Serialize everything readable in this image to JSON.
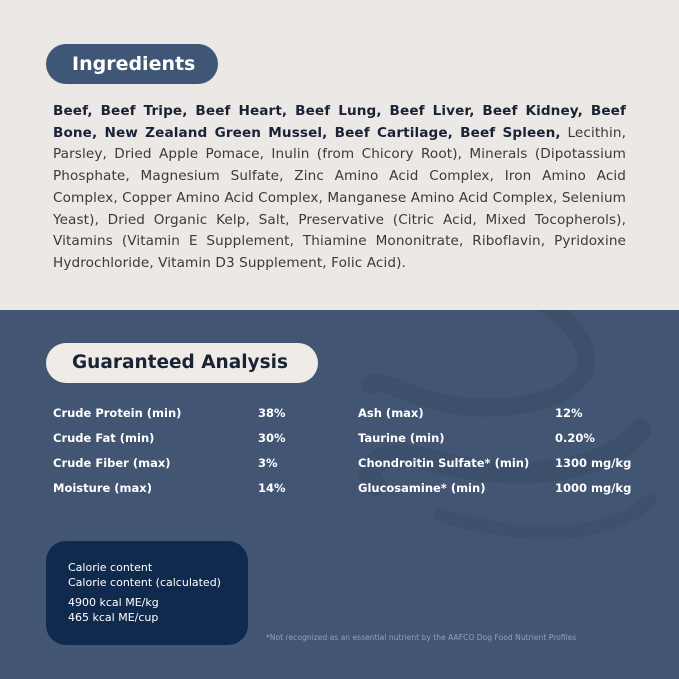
{
  "ingredients": {
    "title": "Ingredients",
    "bold_text": "Beef, Beef Tripe, Beef Heart, Beef Lung, Beef Liver, Beef Kidney, Beef Bone, New Zealand Green Mussel, Beef Cartilage, Beef Spleen,",
    "regular_text": " Lecithin, Parsley, Dried Apple Pomace, Inulin (from Chicory Root), Minerals (Dipotassium Phosphate, Magnesium Sulfate, Zinc Amino Acid Complex, Iron Amino Acid Complex, Copper Amino Acid Complex, Manganese Amino Acid Complex, Selenium Yeast), Dried Organic Kelp, Salt, Preservative (Citric Acid, Mixed Tocopherols), Vitamins (Vitamin E Supplement, Thiamine Mononitrate, Riboflavin, Pyridoxine Hydrochloride, Vitamin D3 Supplement, Folic Acid)."
  },
  "analysis": {
    "title": "Guaranteed Analysis",
    "left": [
      {
        "label": "Crude Protein (min)",
        "value": "38%"
      },
      {
        "label": "Crude Fat (min)",
        "value": "30%"
      },
      {
        "label": "Crude Fiber (max)",
        "value": "3%"
      },
      {
        "label": "Moisture (max)",
        "value": "14%"
      }
    ],
    "right": [
      {
        "label": "Ash (max)",
        "value": "12%"
      },
      {
        "label": "Taurine (min)",
        "value": "0.20%"
      },
      {
        "label": "Chondroitin Sulfate* (min)",
        "value": "1300 mg/kg"
      },
      {
        "label": "Glucosamine* (min)",
        "value": "1000 mg/kg"
      }
    ]
  },
  "calorie": {
    "line1": "Calorie content",
    "line2": "Calorie content (calculated)",
    "per_kg": "4900 kcal ME/kg",
    "per_cup": "465 kcal ME/cup"
  },
  "footnote": "*Not recognized as an essential nutrient by the AAFCO Dog Food Nutrient Profiles",
  "colors": {
    "top_bg": "#ebe8e5",
    "bottom_bg": "#425673",
    "accent": "#3f5676",
    "calorie_box": "#0f2a4c"
  }
}
